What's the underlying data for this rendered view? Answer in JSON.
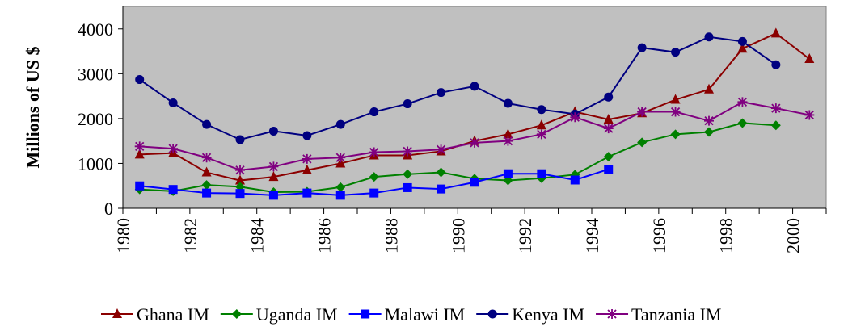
{
  "chart_data": {
    "type": "line",
    "y_label": "Millions of US $",
    "categories": [
      "1980",
      null,
      "1982",
      null,
      "1984",
      null,
      "1986",
      null,
      "1988",
      null,
      "1990",
      null,
      "1992",
      null,
      "1994",
      null,
      "1996",
      null,
      "1998",
      null,
      "2000"
    ],
    "ylim": [
      0,
      4500
    ],
    "yticks": [
      0,
      1000,
      2000,
      3000,
      4000
    ],
    "legend": "bottom",
    "series": [
      {
        "name": "Ghana IM",
        "color": "#8b0000",
        "marker": "triangle",
        "values": [
          1200,
          1230,
          800,
          620,
          700,
          850,
          1000,
          1180,
          1180,
          1270,
          1500,
          1650,
          1850,
          2150,
          1980,
          2120,
          2420,
          2650,
          3560,
          3900,
          3330
        ]
      },
      {
        "name": "Uganda IM",
        "color": "#008000",
        "marker": "diamond",
        "values": [
          420,
          380,
          520,
          480,
          360,
          370,
          470,
          700,
          760,
          800,
          660,
          620,
          670,
          750,
          1150,
          1470,
          1650,
          1700,
          1900,
          1850,
          null
        ]
      },
      {
        "name": "Malawi IM",
        "color": "#0000ff",
        "marker": "square",
        "values": [
          500,
          420,
          340,
          330,
          290,
          340,
          290,
          340,
          460,
          430,
          580,
          770,
          770,
          630,
          870,
          null,
          null,
          null,
          null,
          null,
          null
        ]
      },
      {
        "name": "Kenya IM",
        "color": "#000080",
        "marker": "circle",
        "values": [
          2870,
          2350,
          1870,
          1530,
          1720,
          1620,
          1870,
          2150,
          2330,
          2580,
          2720,
          2340,
          2200,
          2100,
          2480,
          3580,
          3480,
          3820,
          3720,
          3200,
          null
        ]
      },
      {
        "name": "Tanzania IM",
        "color": "#800080",
        "marker": "star",
        "values": [
          1380,
          1330,
          1130,
          850,
          930,
          1100,
          1130,
          1250,
          1270,
          1310,
          1460,
          1500,
          1650,
          2030,
          1780,
          2150,
          2150,
          1950,
          2370,
          2230,
          2080
        ]
      }
    ]
  }
}
